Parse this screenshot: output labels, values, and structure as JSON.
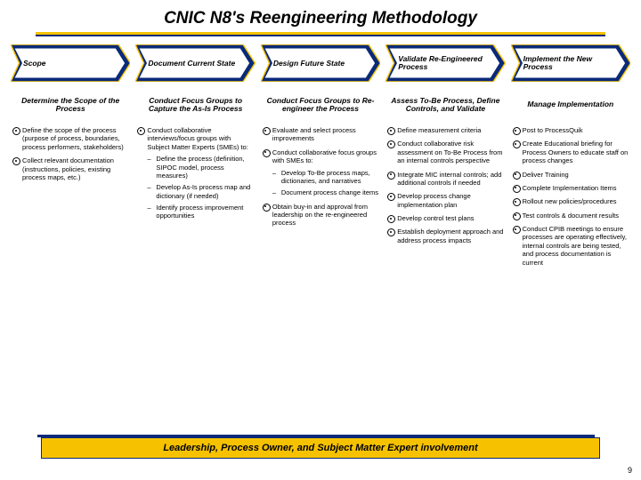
{
  "title": "CNIC N8's Reengineering Methodology",
  "page_number": "9",
  "footer": "Leadership, Process Owner, and Subject Matter Expert involvement",
  "chevron_style": {
    "fill": "#0a2a7a",
    "stroke": "#f6c200",
    "inner_fill": "#ffffff",
    "inner_stroke": "#0a2a7a"
  },
  "columns": [
    {
      "phase": "Scope",
      "subhead": "Determine the Scope of the Process",
      "bullets": [
        {
          "t": "Define the scope of the process (purpose of process, boundaries, process performers, stakeholders)"
        },
        {
          "t": "Collect relevant documentation (instructions, policies, existing process maps, etc.)"
        }
      ]
    },
    {
      "phase": "Document Current State",
      "subhead": "Conduct Focus Groups to Capture the As-Is Process",
      "bullets": [
        {
          "t": "Conduct collaborative interviews/focus groups with Subject Matter Experts (SMEs) to:",
          "sub": [
            "Define the process (definition, SIPOC model, process measures)",
            "Develop As-Is process map and dictionary (if needed)",
            "Identify process improvement opportunities"
          ]
        }
      ]
    },
    {
      "phase": "Design Future State",
      "subhead": "Conduct Focus Groups to Re-engineer the Process",
      "bullets": [
        {
          "t": "Evaluate and select process improvements"
        },
        {
          "t": "Conduct collaborative focus groups with SMEs to:",
          "sub": [
            "Develop To-Be process maps, dictionaries, and narratives",
            "Document process change items"
          ]
        },
        {
          "t": "Obtain buy-in and approval from leadership on the re-engineered process"
        }
      ]
    },
    {
      "phase": "Validate Re-Engineered Process",
      "subhead": "Assess To-Be Process, Define Controls, and Validate",
      "bullets": [
        {
          "t": "Define measurement criteria"
        },
        {
          "t": "Conduct collaborative risk assessment on To-Be Process from an internal controls perspective"
        },
        {
          "t": "Integrate MIC internal controls; add additional controls if needed"
        },
        {
          "t": "Develop process change implementation plan"
        },
        {
          "t": "Develop control test plans"
        },
        {
          "t": "Establish deployment approach and address process impacts"
        }
      ]
    },
    {
      "phase": "Implement the New Process",
      "subhead": "Manage Implementation",
      "bullets": [
        {
          "t": "Post to ProcessQuik"
        },
        {
          "t": "Create Educational briefing for Process Owners to educate staff on process changes"
        },
        {
          "t": "Deliver Training"
        },
        {
          "t": "Complete Implementation Items"
        },
        {
          "t": "Rollout new policies/procedures"
        },
        {
          "t": "Test controls & document results"
        },
        {
          "t": "Conduct CPIB meetings to ensure processes are operating effectively, internal controls are being tested, and process documentation is current"
        }
      ]
    }
  ]
}
